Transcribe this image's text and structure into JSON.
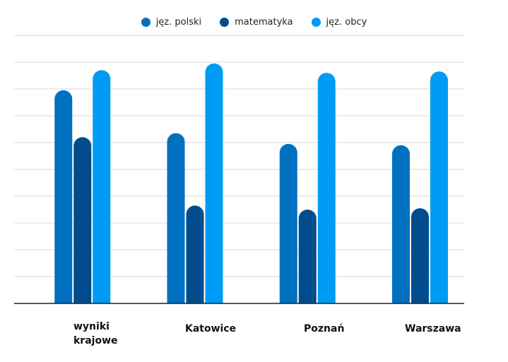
{
  "chart_data": {
    "type": "bar",
    "title": "",
    "xlabel": "",
    "ylabel": "",
    "categories": [
      "wyniki\nkrajowe",
      "Katowice",
      "Poznań",
      "Warszawa"
    ],
    "series": [
      {
        "name": "jęz. polski",
        "color": "#0070C0",
        "values": [
          79.5,
          63.5,
          59.5,
          59
        ]
      },
      {
        "name": "matematyka",
        "color": "#004C8C",
        "values": [
          62,
          36.5,
          35,
          35.5
        ]
      },
      {
        "name": "jęz. obcy",
        "color": "#009BF5",
        "values": [
          87,
          89.5,
          86,
          86.5
        ]
      }
    ],
    "ylim": [
      0,
      100
    ],
    "grid": true,
    "legend": "top"
  }
}
